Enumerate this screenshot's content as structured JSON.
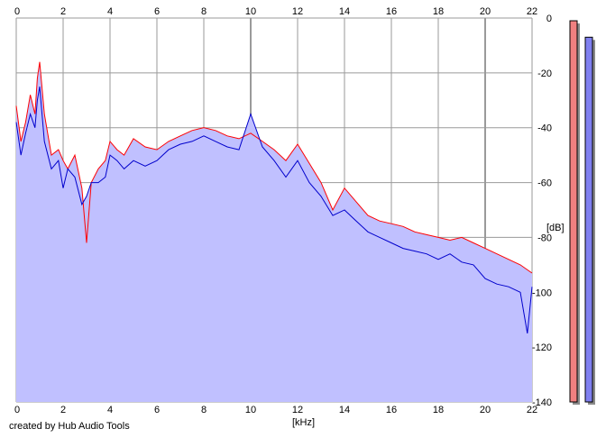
{
  "footer": {
    "credit": "created by Hub Audio Tools"
  },
  "chart_data": {
    "type": "line",
    "xlabel": "[kHz]",
    "ylabel": "[dB]",
    "xlim": [
      0,
      22
    ],
    "ylim": [
      -140,
      0
    ],
    "x_ticks": [
      0,
      2,
      4,
      6,
      8,
      10,
      12,
      14,
      16,
      18,
      20,
      22
    ],
    "y_ticks": [
      0,
      -20,
      -40,
      -60,
      -80,
      -100,
      -120,
      -140
    ],
    "grid": true,
    "colors": {
      "fill": "#c0c0ff",
      "left_channel": "#ff0000",
      "right_channel": "#0000cc",
      "meter_left": "#f08080",
      "meter_right": "#8080f0"
    },
    "series": [
      {
        "x": [
          0,
          0.2,
          0.4,
          0.6,
          0.8,
          0.9,
          1.0,
          1.2,
          1.5,
          1.8,
          2.0,
          2.2,
          2.5,
          2.8,
          3.0,
          3.2,
          3.5,
          3.8,
          4.0,
          4.3,
          4.6,
          5.0,
          5.5,
          6.0,
          6.5,
          7.0,
          7.5,
          8.0,
          8.5,
          9.0,
          9.5,
          10.0,
          10.5,
          11.0,
          11.5,
          12.0,
          12.5,
          13.0,
          13.5,
          14.0,
          14.5,
          15.0,
          15.5,
          16.0,
          16.5,
          17.0,
          17.5,
          18.0,
          18.5,
          19.0,
          19.5,
          20.0,
          20.5,
          21.0,
          21.5,
          22.0
        ],
        "values": [
          -32,
          -45,
          -38,
          -28,
          -35,
          -22,
          -16,
          -35,
          -50,
          -48,
          -52,
          -55,
          -50,
          -62,
          -82,
          -60,
          -55,
          -52,
          -45,
          -48,
          -50,
          -44,
          -47,
          -48,
          -45,
          -43,
          -41,
          -40,
          -41,
          -43,
          -44,
          -42,
          -45,
          -48,
          -52,
          -46,
          -53,
          -60,
          -70,
          -62,
          -67,
          -72,
          -74,
          -75,
          -76,
          -78,
          -79,
          -80,
          -81,
          -80,
          -82,
          -84,
          -86,
          -88,
          -90,
          -93
        ]
      },
      {
        "x": [
          0,
          0.2,
          0.4,
          0.6,
          0.8,
          0.9,
          1.0,
          1.2,
          1.5,
          1.8,
          2.0,
          2.2,
          2.5,
          2.8,
          3.0,
          3.2,
          3.5,
          3.8,
          4.0,
          4.3,
          4.6,
          5.0,
          5.5,
          6.0,
          6.5,
          7.0,
          7.5,
          8.0,
          8.5,
          9.0,
          9.5,
          10.0,
          10.5,
          11.0,
          11.5,
          12.0,
          12.5,
          13.0,
          13.5,
          14.0,
          14.5,
          15.0,
          15.5,
          16.0,
          16.5,
          17.0,
          17.5,
          18.0,
          18.5,
          19.0,
          19.5,
          20.0,
          20.5,
          21.0,
          21.5,
          21.8,
          22.0
        ],
        "values": [
          -38,
          -50,
          -42,
          -35,
          -40,
          -30,
          -25,
          -45,
          -55,
          -52,
          -62,
          -55,
          -58,
          -68,
          -65,
          -60,
          -60,
          -58,
          -50,
          -52,
          -55,
          -52,
          -54,
          -52,
          -48,
          -46,
          -45,
          -43,
          -45,
          -47,
          -48,
          -35,
          -47,
          -52,
          -58,
          -52,
          -60,
          -65,
          -72,
          -70,
          -74,
          -78,
          -80,
          -82,
          -84,
          -85,
          -86,
          -88,
          -86,
          -89,
          -90,
          -95,
          -97,
          -98,
          -100,
          -115,
          -98
        ]
      }
    ],
    "meters": {
      "left": -1,
      "right": -7
    }
  }
}
